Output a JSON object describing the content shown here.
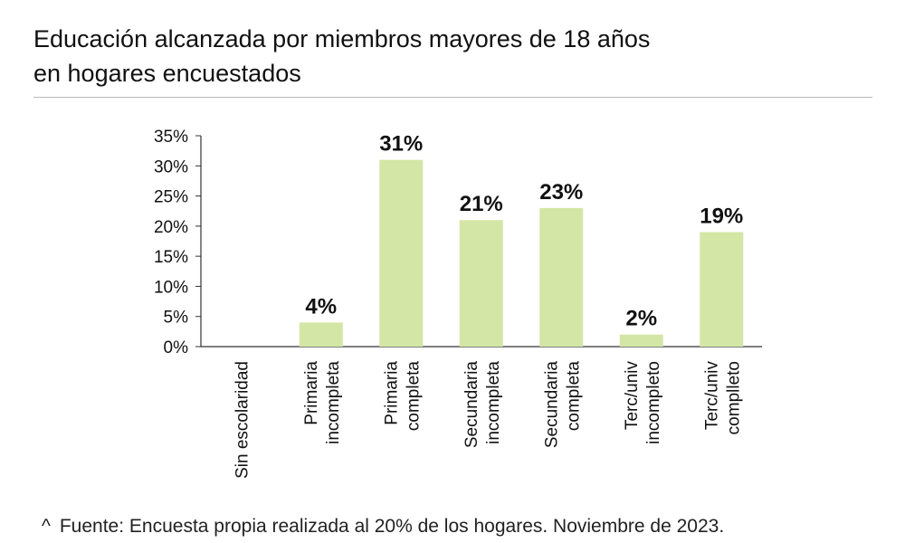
{
  "title": {
    "line1": "Educación alcanzada por miembros mayores de 18 años",
    "line2": "en hogares encuestados"
  },
  "footnote": {
    "mark": "^",
    "text": "Fuente: Encuesta propia realizada al 20% de los hogares. Noviembre de 2023."
  },
  "colors": {
    "bar": "#d4e6a5",
    "axis": "#333333",
    "text": "#111111"
  },
  "chart_data": {
    "type": "bar",
    "title": "Educación alcanzada por miembros mayores de 18 años en hogares encuestados",
    "categories": [
      [
        "Sin escolaridad"
      ],
      [
        "Primaria",
        "incompleta"
      ],
      [
        "Primaria",
        "completa"
      ],
      [
        "Secundaria",
        "incompleta"
      ],
      [
        "Secundaria",
        "completa"
      ],
      [
        "Terc/univ",
        "incompleto"
      ],
      [
        "Terc/univ",
        "complleto"
      ]
    ],
    "values": [
      0,
      4,
      31,
      21,
      23,
      2,
      19
    ],
    "data_labels": [
      "",
      "4%",
      "31%",
      "21%",
      "23%",
      "2%",
      "19%"
    ],
    "ylim": [
      0,
      35
    ],
    "yticks": [
      "0%",
      "5%",
      "10%",
      "15%",
      "20%",
      "25%",
      "30%",
      "35%"
    ],
    "xlabel": "",
    "ylabel": "",
    "grid": false,
    "legend": "none"
  }
}
